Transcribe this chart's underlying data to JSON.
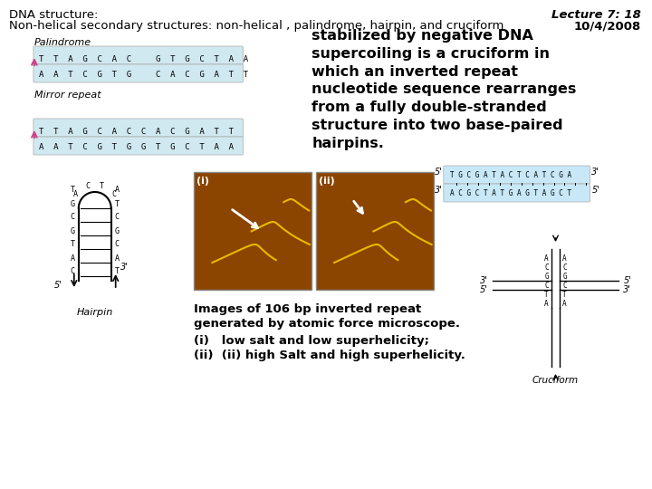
{
  "title_left": "DNA structure:\nNon-helical secondary structures: non-helical , palindrome, hairpin, and cruciform",
  "title_right": "Lecture 7: 18\n10/4/2008",
  "body_text": "stabilized by negative DNA\nsupercoiling is a cruciform in\nwhich an inverted repeat\nnucleotide sequence rearranges\nfrom a fully double-stranded\nstructure into two base-paired\nhairpins.",
  "caption_bold": "Images of 106 bp inverted repeat\ngenerated by atomic force microscope.",
  "caption_list": "(i)   low salt and low superhelicity;\n(ii)  (ii) high Salt and high superhelicity.",
  "bg_color": "#ffffff",
  "header_bg": "#ffffff",
  "title_fontsize": 9.5,
  "body_fontsize": 11.5,
  "caption_fontsize": 9.5,
  "lecture_fontsize": 9.5
}
